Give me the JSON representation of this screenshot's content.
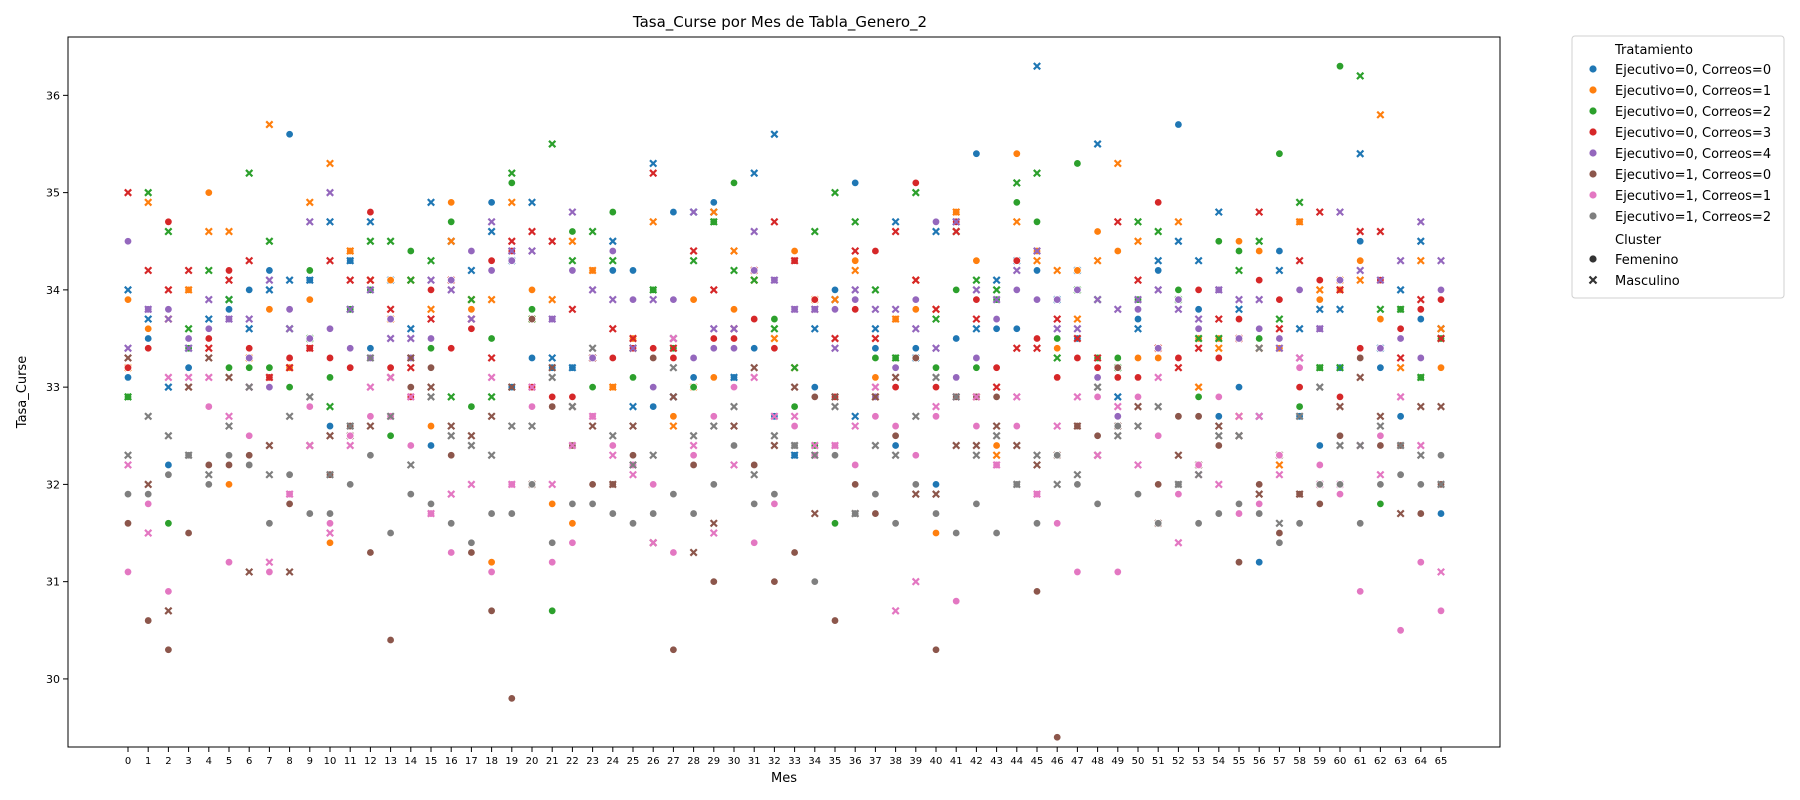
{
  "chart_data": {
    "type": "scatter",
    "title": "Tasa_Curse por Mes de Tabla_Genero_2",
    "xlabel": "Mes",
    "ylabel": "Tasa_Curse",
    "ylim": [
      29.3,
      36.6
    ],
    "y_ticks": [
      30,
      31,
      32,
      33,
      34,
      35,
      36
    ],
    "x_categories": [
      "0",
      "1",
      "2",
      "3",
      "4",
      "5",
      "6",
      "7",
      "8",
      "9",
      "10",
      "11",
      "12",
      "13",
      "14",
      "15",
      "16",
      "17",
      "18",
      "19",
      "20",
      "21",
      "22",
      "23",
      "24",
      "25",
      "26",
      "27",
      "28",
      "29",
      "30",
      "31",
      "32",
      "33",
      "34",
      "35",
      "36",
      "37",
      "38",
      "39",
      "40",
      "41",
      "42",
      "43",
      "44",
      "45",
      "46",
      "47",
      "48",
      "49",
      "50",
      "51",
      "52",
      "53",
      "54",
      "55",
      "56",
      "57",
      "58",
      "59",
      "60",
      "61",
      "62",
      "63",
      "64",
      "65"
    ],
    "grid": false,
    "legend_placement": "outside-top-right",
    "legend_hue_title": "Tratamiento",
    "legend_style_title": "Cluster",
    "style_entries": [
      {
        "name": "Femenino",
        "marker": "circle"
      },
      {
        "name": "Masculino",
        "marker": "x"
      }
    ],
    "series": [
      {
        "name": "Ejecutivo=0, Correos=0",
        "color": "#1f77b4",
        "femenino": [
          33.1,
          33.5,
          32.2,
          33.2,
          33.5,
          33.8,
          34.0,
          34.2,
          35.6,
          34.1,
          32.6,
          34.3,
          33.4,
          34.1,
          33.3,
          32.4,
          34.9,
          33.6,
          34.9,
          33.0,
          33.3,
          33.2,
          33.2,
          34.2,
          34.2,
          34.2,
          32.8,
          34.8,
          33.1,
          34.9,
          33.1,
          33.4,
          32.7,
          32.3,
          33.0,
          34.0,
          35.1,
          33.4,
          32.4,
          33.4,
          32.0,
          33.5,
          35.4,
          33.6,
          33.6,
          34.2,
          33.1,
          33.5,
          33.3,
          33.1,
          33.7,
          34.2,
          35.7,
          33.8,
          32.7,
          33.0,
          31.2,
          34.4,
          32.7,
          32.4,
          33.2,
          34.5,
          33.2,
          32.7,
          33.7,
          31.7
        ],
        "masculino": [
          34.0,
          33.7,
          33.0,
          33.4,
          33.7,
          33.9,
          33.6,
          34.0,
          34.1,
          34.1,
          34.7,
          34.3,
          34.7,
          34.1,
          33.6,
          34.9,
          34.5,
          34.2,
          34.6,
          34.3,
          34.9,
          33.3,
          33.2,
          33.3,
          34.5,
          32.8,
          35.3,
          32.9,
          34.8,
          34.8,
          33.1,
          35.2,
          35.6,
          32.3,
          33.6,
          33.9,
          32.7,
          33.6,
          34.7,
          33.3,
          34.6,
          34.7,
          33.6,
          34.1,
          34.3,
          36.3,
          33.9,
          34.2,
          35.5,
          32.9,
          33.6,
          34.3,
          34.5,
          34.3,
          34.8,
          33.8,
          32.7,
          34.2,
          33.6,
          33.8,
          33.8,
          35.4,
          33.4,
          34.0,
          34.5,
          33.6
        ]
      },
      {
        "name": "Ejecutivo=0, Correos=1",
        "color": "#ff7f0e",
        "femenino": [
          33.9,
          33.6,
          34.7,
          34.0,
          35.0,
          32.0,
          33.4,
          33.8,
          33.2,
          33.9,
          31.4,
          34.4,
          34.0,
          34.1,
          33.0,
          32.6,
          34.9,
          33.8,
          31.2,
          34.3,
          34.0,
          31.8,
          31.6,
          34.2,
          33.0,
          33.5,
          34.0,
          32.7,
          33.9,
          33.1,
          33.8,
          32.2,
          33.7,
          34.4,
          33.9,
          32.3,
          34.3,
          33.1,
          33.7,
          33.8,
          31.5,
          34.8,
          34.3,
          32.4,
          35.4,
          34.4,
          33.4,
          34.2,
          34.6,
          34.4,
          33.3,
          33.3,
          32.7,
          33.5,
          33.5,
          34.5,
          34.4,
          33.4,
          34.7,
          33.9,
          34.0,
          34.3,
          33.7,
          33.5,
          32.0,
          33.2
        ],
        "masculino": [
          33.2,
          34.9,
          33.7,
          34.0,
          34.6,
          34.6,
          33.3,
          35.7,
          33.2,
          34.9,
          35.3,
          34.4,
          34.1,
          33.7,
          34.1,
          33.8,
          34.5,
          33.9,
          33.9,
          34.9,
          33.7,
          33.9,
          34.5,
          34.2,
          33.0,
          33.4,
          34.7,
          32.6,
          33.0,
          34.8,
          34.4,
          34.1,
          33.5,
          33.2,
          33.9,
          33.9,
          34.2,
          32.9,
          33.7,
          34.1,
          33.8,
          34.8,
          32.9,
          32.3,
          34.7,
          34.3,
          34.2,
          33.7,
          34.3,
          35.3,
          34.5,
          33.4,
          34.7,
          33.0,
          33.4,
          32.7,
          33.4,
          32.2,
          34.7,
          34.0,
          34.1,
          34.1,
          35.8,
          33.2,
          34.3,
          33.6
        ]
      },
      {
        "name": "Ejecutivo=0, Correos=2",
        "color": "#2ca02c",
        "femenino": [
          32.9,
          33.8,
          31.6,
          33.4,
          33.5,
          33.2,
          33.2,
          33.2,
          33.0,
          34.2,
          33.1,
          33.8,
          34.0,
          32.5,
          34.4,
          33.4,
          34.7,
          32.8,
          33.5,
          35.1,
          33.8,
          30.7,
          34.6,
          33.0,
          34.8,
          33.1,
          34.0,
          33.4,
          33.0,
          34.7,
          35.1,
          34.2,
          33.7,
          32.8,
          32.4,
          31.6,
          33.9,
          33.3,
          33.3,
          33.9,
          33.2,
          34.0,
          33.2,
          33.9,
          34.9,
          34.7,
          33.5,
          35.3,
          33.3,
          33.3,
          33.9,
          33.4,
          34.0,
          32.9,
          34.5,
          34.4,
          33.5,
          35.4,
          32.8,
          33.2,
          36.3,
          33.3,
          31.8,
          33.8,
          33.1,
          33.5
        ],
        "masculino": [
          32.9,
          35.0,
          34.6,
          33.6,
          34.2,
          33.9,
          35.2,
          34.5,
          33.6,
          33.5,
          32.8,
          33.8,
          34.5,
          34.5,
          34.1,
          34.3,
          32.9,
          33.9,
          32.9,
          35.2,
          33.7,
          35.5,
          34.3,
          34.6,
          34.3,
          33.4,
          34.0,
          33.5,
          34.3,
          34.7,
          34.2,
          34.1,
          33.6,
          33.2,
          34.6,
          35.0,
          34.7,
          34.0,
          33.3,
          35.0,
          33.7,
          34.6,
          34.1,
          34.0,
          35.1,
          35.2,
          33.3,
          34.0,
          33.9,
          33.2,
          34.7,
          34.6,
          33.9,
          33.5,
          33.5,
          34.2,
          34.5,
          33.7,
          34.9,
          33.2,
          33.2,
          36.2,
          33.8,
          33.8,
          33.1,
          33.5
        ]
      },
      {
        "name": "Ejecutivo=0, Correos=3",
        "color": "#d62728",
        "femenino": [
          33.2,
          33.4,
          34.7,
          31.5,
          33.5,
          34.2,
          33.4,
          33.1,
          33.3,
          33.4,
          33.3,
          33.2,
          34.8,
          33.2,
          32.9,
          34.0,
          33.4,
          33.6,
          34.3,
          34.4,
          33.0,
          32.9,
          32.9,
          33.3,
          33.3,
          33.4,
          33.4,
          33.3,
          32.3,
          33.5,
          33.5,
          33.7,
          33.4,
          34.3,
          33.9,
          32.9,
          33.8,
          34.4,
          33.0,
          35.1,
          33.0,
          34.7,
          33.9,
          33.2,
          34.3,
          33.5,
          33.1,
          33.3,
          33.2,
          33.1,
          33.1,
          34.9,
          33.3,
          34.0,
          33.3,
          33.7,
          34.1,
          33.9,
          33.0,
          34.1,
          32.9,
          33.4,
          34.1,
          33.6,
          33.8,
          33.9
        ],
        "masculino": [
          35.0,
          34.2,
          34.0,
          34.2,
          33.4,
          34.1,
          34.3,
          33.1,
          33.2,
          33.4,
          34.3,
          34.1,
          34.1,
          33.8,
          33.2,
          33.7,
          34.1,
          33.7,
          33.3,
          34.5,
          34.6,
          34.5,
          33.8,
          33.3,
          33.6,
          33.5,
          35.2,
          33.4,
          34.4,
          34.0,
          33.6,
          34.2,
          34.7,
          34.3,
          33.8,
          33.5,
          34.4,
          33.5,
          34.6,
          34.1,
          33.8,
          34.6,
          33.7,
          33.0,
          33.4,
          33.4,
          33.7,
          33.5,
          33.3,
          34.7,
          34.1,
          33.4,
          33.2,
          33.4,
          33.7,
          33.5,
          34.8,
          33.6,
          34.3,
          34.8,
          34.0,
          34.6,
          34.6,
          33.3,
          33.9,
          33.5
        ]
      },
      {
        "name": "Ejecutivo=0, Correos=4",
        "color": "#9467bd",
        "femenino": [
          34.5,
          33.8,
          33.8,
          33.5,
          33.6,
          33.7,
          33.3,
          33.0,
          33.8,
          33.5,
          33.6,
          33.4,
          33.3,
          33.7,
          33.3,
          33.5,
          34.1,
          34.4,
          34.2,
          34.3,
          32.8,
          33.7,
          34.2,
          33.3,
          34.4,
          33.9,
          33.0,
          33.9,
          33.3,
          33.4,
          33.4,
          34.2,
          34.1,
          33.8,
          33.8,
          33.8,
          33.9,
          32.9,
          33.2,
          33.9,
          34.7,
          33.1,
          33.3,
          33.7,
          34.0,
          33.9,
          33.9,
          34.0,
          33.1,
          32.7,
          33.8,
          33.4,
          33.9,
          33.6,
          34.0,
          33.5,
          33.6,
          33.5,
          34.0,
          33.6,
          34.1,
          33.3,
          33.4,
          33.5,
          33.3,
          34.0
        ],
        "masculino": [
          33.4,
          33.8,
          33.7,
          33.4,
          33.9,
          33.7,
          33.7,
          34.1,
          33.6,
          34.7,
          35.0,
          33.8,
          34.0,
          33.5,
          33.5,
          34.1,
          34.0,
          33.7,
          34.7,
          34.4,
          34.4,
          33.7,
          34.8,
          34.0,
          33.9,
          33.4,
          33.9,
          33.5,
          34.8,
          33.6,
          33.6,
          34.6,
          34.1,
          33.8,
          33.8,
          33.4,
          34.0,
          33.8,
          33.8,
          33.6,
          33.4,
          34.7,
          34.0,
          33.9,
          34.2,
          34.4,
          33.6,
          33.6,
          33.9,
          33.8,
          33.9,
          34.0,
          33.8,
          33.7,
          34.0,
          33.9,
          33.9,
          33.4,
          33.3,
          33.6,
          34.8,
          34.2,
          34.1,
          34.3,
          34.7,
          34.3
        ]
      },
      {
        "name": "Ejecutivo=1, Correos=0",
        "color": "#8c564b",
        "femenino": [
          31.6,
          30.6,
          30.3,
          31.5,
          32.2,
          32.2,
          32.3,
          31.1,
          31.8,
          31.7,
          32.1,
          32.6,
          31.3,
          30.4,
          33.0,
          33.2,
          32.3,
          31.3,
          30.7,
          29.8,
          33.7,
          32.8,
          32.4,
          32.0,
          32.0,
          32.3,
          33.3,
          30.3,
          32.2,
          31.0,
          33.0,
          32.2,
          31.0,
          31.3,
          32.9,
          30.6,
          32.0,
          31.7,
          32.5,
          33.3,
          30.3,
          32.9,
          32.9,
          32.9,
          32.0,
          30.9,
          29.4,
          32.6,
          32.5,
          33.2,
          31.9,
          32.0,
          32.7,
          32.7,
          32.4,
          31.2,
          32.0,
          31.5,
          31.9,
          31.8,
          32.5,
          33.3,
          32.4,
          32.4,
          31.7,
          32.0
        ],
        "masculino": [
          33.3,
          32.0,
          30.7,
          33.0,
          33.3,
          33.1,
          31.1,
          32.4,
          31.1,
          32.4,
          32.5,
          32.5,
          32.6,
          33.1,
          33.3,
          33.0,
          32.6,
          32.5,
          32.7,
          33.0,
          32.0,
          33.2,
          32.8,
          32.6,
          32.0,
          32.6,
          31.4,
          32.9,
          31.3,
          31.6,
          32.6,
          33.2,
          32.4,
          33.0,
          31.7,
          32.9,
          31.7,
          32.9,
          33.1,
          31.9,
          31.9,
          32.4,
          32.4,
          32.6,
          32.4,
          32.2,
          32.3,
          32.6,
          32.3,
          32.6,
          32.8,
          31.6,
          32.3,
          32.2,
          32.6,
          32.5,
          31.9,
          32.3,
          31.9,
          32.0,
          32.8,
          33.1,
          32.7,
          31.7,
          32.8,
          32.8
        ]
      },
      {
        "name": "Ejecutivo=1, Correos=1",
        "color": "#e377c2",
        "femenino": [
          31.1,
          31.8,
          30.9,
          32.3,
          32.8,
          31.2,
          32.5,
          31.1,
          31.9,
          32.8,
          31.6,
          32.5,
          32.7,
          32.7,
          32.4,
          31.7,
          31.3,
          31.4,
          31.1,
          32.0,
          32.8,
          31.2,
          31.4,
          32.7,
          32.4,
          32.2,
          32.0,
          31.3,
          32.3,
          32.7,
          33.0,
          31.4,
          31.8,
          32.6,
          32.3,
          32.4,
          32.2,
          32.7,
          32.6,
          32.3,
          32.7,
          30.8,
          32.6,
          32.2,
          32.6,
          31.9,
          31.6,
          31.1,
          32.9,
          31.1,
          32.9,
          32.5,
          31.9,
          32.2,
          32.9,
          31.7,
          31.8,
          32.3,
          33.2,
          32.2,
          31.9,
          30.9,
          32.5,
          30.5,
          31.2,
          30.7
        ],
        "masculino": [
          32.2,
          31.5,
          33.1,
          33.1,
          33.1,
          32.7,
          33.0,
          31.2,
          31.9,
          32.4,
          31.5,
          32.4,
          33.0,
          33.1,
          32.9,
          31.7,
          31.9,
          32.0,
          33.1,
          32.0,
          33.0,
          32.0,
          32.4,
          32.7,
          32.3,
          32.1,
          31.4,
          33.5,
          32.4,
          31.5,
          32.2,
          33.1,
          32.7,
          32.7,
          32.4,
          32.4,
          32.6,
          33.0,
          30.7,
          31.0,
          32.8,
          32.9,
          32.9,
          32.2,
          32.9,
          31.9,
          32.6,
          32.9,
          32.3,
          32.8,
          32.2,
          33.1,
          31.4,
          32.1,
          32.0,
          32.7,
          32.7,
          32.1,
          33.3,
          32.0,
          32.0,
          32.4,
          32.1,
          32.9,
          32.4,
          31.1
        ]
      },
      {
        "name": "Ejecutivo=1, Correos=2",
        "color": "#7f7f7f",
        "femenino": [
          31.9,
          31.9,
          32.1,
          32.3,
          32.0,
          32.3,
          32.2,
          31.6,
          32.1,
          31.7,
          31.7,
          32.0,
          32.3,
          31.5,
          31.9,
          31.8,
          31.6,
          31.4,
          31.7,
          31.7,
          32.0,
          31.4,
          31.8,
          31.8,
          31.7,
          31.6,
          31.7,
          31.9,
          31.7,
          32.0,
          32.4,
          31.8,
          31.9,
          32.4,
          31.0,
          32.3,
          31.7,
          31.9,
          31.6,
          32.0,
          31.7,
          31.5,
          31.8,
          31.5,
          32.0,
          31.6,
          32.3,
          32.0,
          31.8,
          32.6,
          31.9,
          31.6,
          32.0,
          31.6,
          31.7,
          31.8,
          31.7,
          31.4,
          31.6,
          32.0,
          32.0,
          31.6,
          32.0,
          32.1,
          32.0,
          32.3
        ],
        "masculino": [
          32.3,
          32.7,
          32.5,
          32.3,
          32.1,
          32.6,
          33.0,
          32.1,
          32.7,
          32.9,
          32.1,
          32.6,
          33.3,
          32.7,
          32.2,
          32.9,
          32.5,
          32.4,
          32.3,
          32.6,
          32.6,
          33.1,
          32.8,
          33.4,
          32.5,
          32.2,
          32.3,
          33.2,
          32.5,
          32.6,
          32.8,
          32.1,
          32.5,
          32.4,
          32.3,
          32.8,
          31.7,
          32.4,
          32.3,
          32.7,
          33.1,
          32.9,
          32.3,
          32.5,
          32.0,
          32.3,
          32.0,
          32.1,
          33.0,
          32.5,
          32.6,
          32.8,
          32.0,
          32.1,
          32.5,
          32.5,
          33.4,
          31.6,
          32.7,
          33.0,
          32.4,
          32.4,
          32.6,
          32.4,
          32.3,
          32.0
        ]
      }
    ]
  }
}
